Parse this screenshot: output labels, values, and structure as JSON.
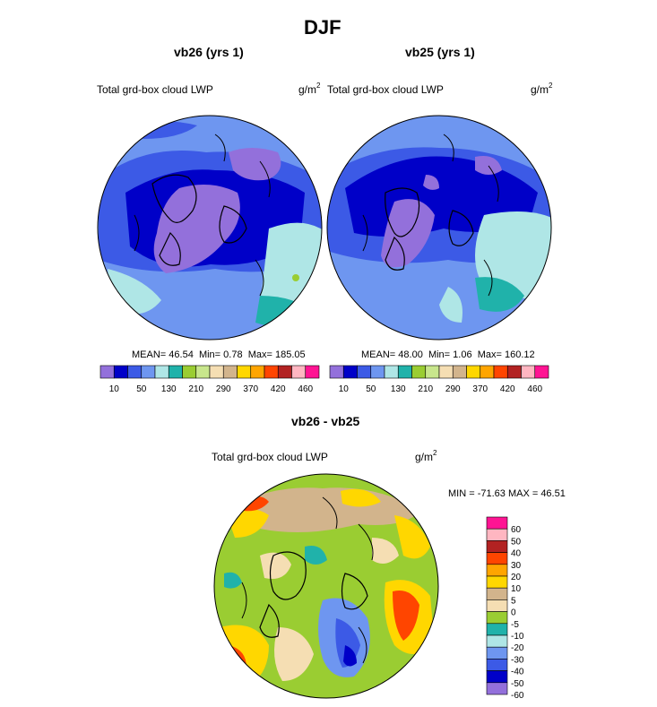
{
  "page_title": "DJF",
  "chart_data": [
    {
      "type": "heatmap",
      "projection": "north polar stereographic",
      "title": "vb26 (yrs 1)",
      "left_label": "Total grd-box cloud LWP",
      "units": {
        "base": "g/m",
        "exp": "2"
      },
      "stats": {
        "mean_label": "MEAN=",
        "mean": "46.54",
        "min_label": "Min=",
        "min": "0.78",
        "max_label": "Max=",
        "max": "185.05"
      },
      "colorbar": {
        "orientation": "horizontal",
        "colors": [
          "#9370DB",
          "#0000C8",
          "#3C5AE6",
          "#6E96F0",
          "#AFE6E6",
          "#20B2AA",
          "#9ACD32",
          "#C8E68C",
          "#F5DEB3",
          "#D2B48C",
          "#FFD700",
          "#FFA500",
          "#FF4500",
          "#B22222",
          "#FFB6C1",
          "#FF1493"
        ],
        "tick_labels": [
          "10",
          "50",
          "130",
          "210",
          "290",
          "370",
          "420",
          "460"
        ]
      }
    },
    {
      "type": "heatmap",
      "projection": "north polar stereographic",
      "title": "vb25 (yrs 1)",
      "left_label": "Total grd-box cloud LWP",
      "units": {
        "base": "g/m",
        "exp": "2"
      },
      "stats": {
        "mean_label": "MEAN=",
        "mean": "48.00",
        "min_label": "Min=",
        "min": "1.06",
        "max_label": "Max=",
        "max": "160.12"
      },
      "colorbar": {
        "orientation": "horizontal",
        "colors": [
          "#9370DB",
          "#0000C8",
          "#3C5AE6",
          "#6E96F0",
          "#AFE6E6",
          "#20B2AA",
          "#9ACD32",
          "#C8E68C",
          "#F5DEB3",
          "#D2B48C",
          "#FFD700",
          "#FFA500",
          "#FF4500",
          "#B22222",
          "#FFB6C1",
          "#FF1493"
        ],
        "tick_labels": [
          "10",
          "50",
          "130",
          "210",
          "290",
          "370",
          "420",
          "460"
        ]
      }
    },
    {
      "type": "heatmap",
      "projection": "north polar stereographic",
      "title": "vb26 - vb25",
      "left_label": "Total grd-box cloud LWP",
      "units": {
        "base": "g/m",
        "exp": "2"
      },
      "minmax": "MIN = -71.63 MAX =  46.51",
      "colorbar": {
        "orientation": "vertical",
        "colors": [
          "#FF1493",
          "#FFB6C1",
          "#B22222",
          "#FF4500",
          "#FFA500",
          "#FFD700",
          "#D2B48C",
          "#F5DEB3",
          "#9ACD32",
          "#20B2AA",
          "#AFE6E6",
          "#6E96F0",
          "#3C5AE6",
          "#0000C8",
          "#9370DB"
        ],
        "tick_labels": [
          "60",
          "50",
          "40",
          "30",
          "20",
          "10",
          "5",
          "0",
          "-5",
          "-10",
          "-20",
          "-30",
          "-40",
          "-50",
          "-60"
        ]
      }
    }
  ]
}
